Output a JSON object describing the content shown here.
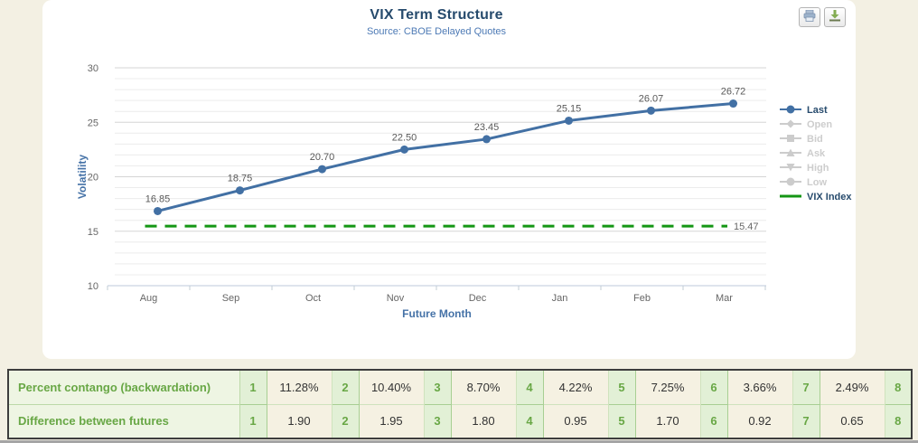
{
  "chart": {
    "title": "VIX Term Structure",
    "subtitle": "Source: CBOE Delayed Quotes",
    "toolbar": [
      {
        "name": "printer-icon"
      },
      {
        "name": "download-icon"
      }
    ],
    "legend": {
      "position": "right",
      "items": [
        {
          "label": "Last",
          "marker": "circle",
          "state": "active",
          "color": "#4270a4"
        },
        {
          "label": "Open",
          "marker": "diamond",
          "state": "disabled",
          "color": "#cccccc"
        },
        {
          "label": "Bid",
          "marker": "square",
          "state": "disabled",
          "color": "#cccccc"
        },
        {
          "label": "Ask",
          "marker": "triangle",
          "state": "disabled",
          "color": "#cccccc"
        },
        {
          "label": "High",
          "marker": "triangle-down",
          "state": "disabled",
          "color": "#cccccc"
        },
        {
          "label": "Low",
          "marker": "circle",
          "state": "disabled",
          "color": "#cccccc"
        },
        {
          "label": "VIX Index",
          "marker": "line",
          "state": "active",
          "color": "#149614"
        }
      ]
    }
  },
  "chart_data": {
    "type": "line",
    "title": "VIX Term Structure",
    "subtitle": "Source: CBOE Delayed Quotes",
    "xlabel": "Future Month",
    "ylabel": "Volatility",
    "categories": [
      "Aug",
      "Sep",
      "Oct",
      "Nov",
      "Dec",
      "Jan",
      "Feb",
      "Mar"
    ],
    "series": [
      {
        "name": "Last",
        "color": "#4270a4",
        "values": [
          16.85,
          18.75,
          20.7,
          22.5,
          23.45,
          25.15,
          26.07,
          26.72
        ],
        "value_labels": [
          "16.85",
          "18.75",
          "20.70",
          "22.50",
          "23.45",
          "25.15",
          "26.07",
          "26.72"
        ]
      }
    ],
    "hidden_series": [
      "Open",
      "Bid",
      "Ask",
      "High",
      "Low"
    ],
    "reference_line": {
      "name": "VIX Index",
      "value": 15.47,
      "label": "15.47",
      "color": "#149614",
      "style": "dashed"
    },
    "ylim": [
      10,
      30
    ],
    "y_ticks": [
      10,
      15,
      20,
      25,
      30
    ],
    "y_tick_labels": [
      "10",
      "15",
      "20",
      "25",
      "30"
    ],
    "minor_grid_step": 1,
    "grid": true,
    "legend_position": "right"
  },
  "table": {
    "rows": [
      {
        "label": "Percent contango (backwardation)",
        "pairs": [
          [
            "1",
            "11.28%"
          ],
          [
            "2",
            "10.40%"
          ],
          [
            "3",
            "8.70%"
          ],
          [
            "4",
            "4.22%"
          ],
          [
            "5",
            "7.25%"
          ],
          [
            "6",
            "3.66%"
          ],
          [
            "7",
            "2.49%"
          ]
        ],
        "tail": "8"
      },
      {
        "label": "Difference between futures",
        "pairs": [
          [
            "1",
            "1.90"
          ],
          [
            "2",
            "1.95"
          ],
          [
            "3",
            "1.80"
          ],
          [
            "4",
            "0.95"
          ],
          [
            "5",
            "1.70"
          ],
          [
            "6",
            "0.92"
          ],
          [
            "7",
            "0.65"
          ]
        ],
        "tail": "8"
      }
    ]
  },
  "colors": {
    "page_bg": "#f3f0e3",
    "panel_bg": "#ffffff",
    "series_blue": "#4270a4",
    "vix_green": "#149614",
    "axis_title_blue": "#4572a7",
    "tick_label_gray": "#666666",
    "table_green": "#68a745"
  }
}
